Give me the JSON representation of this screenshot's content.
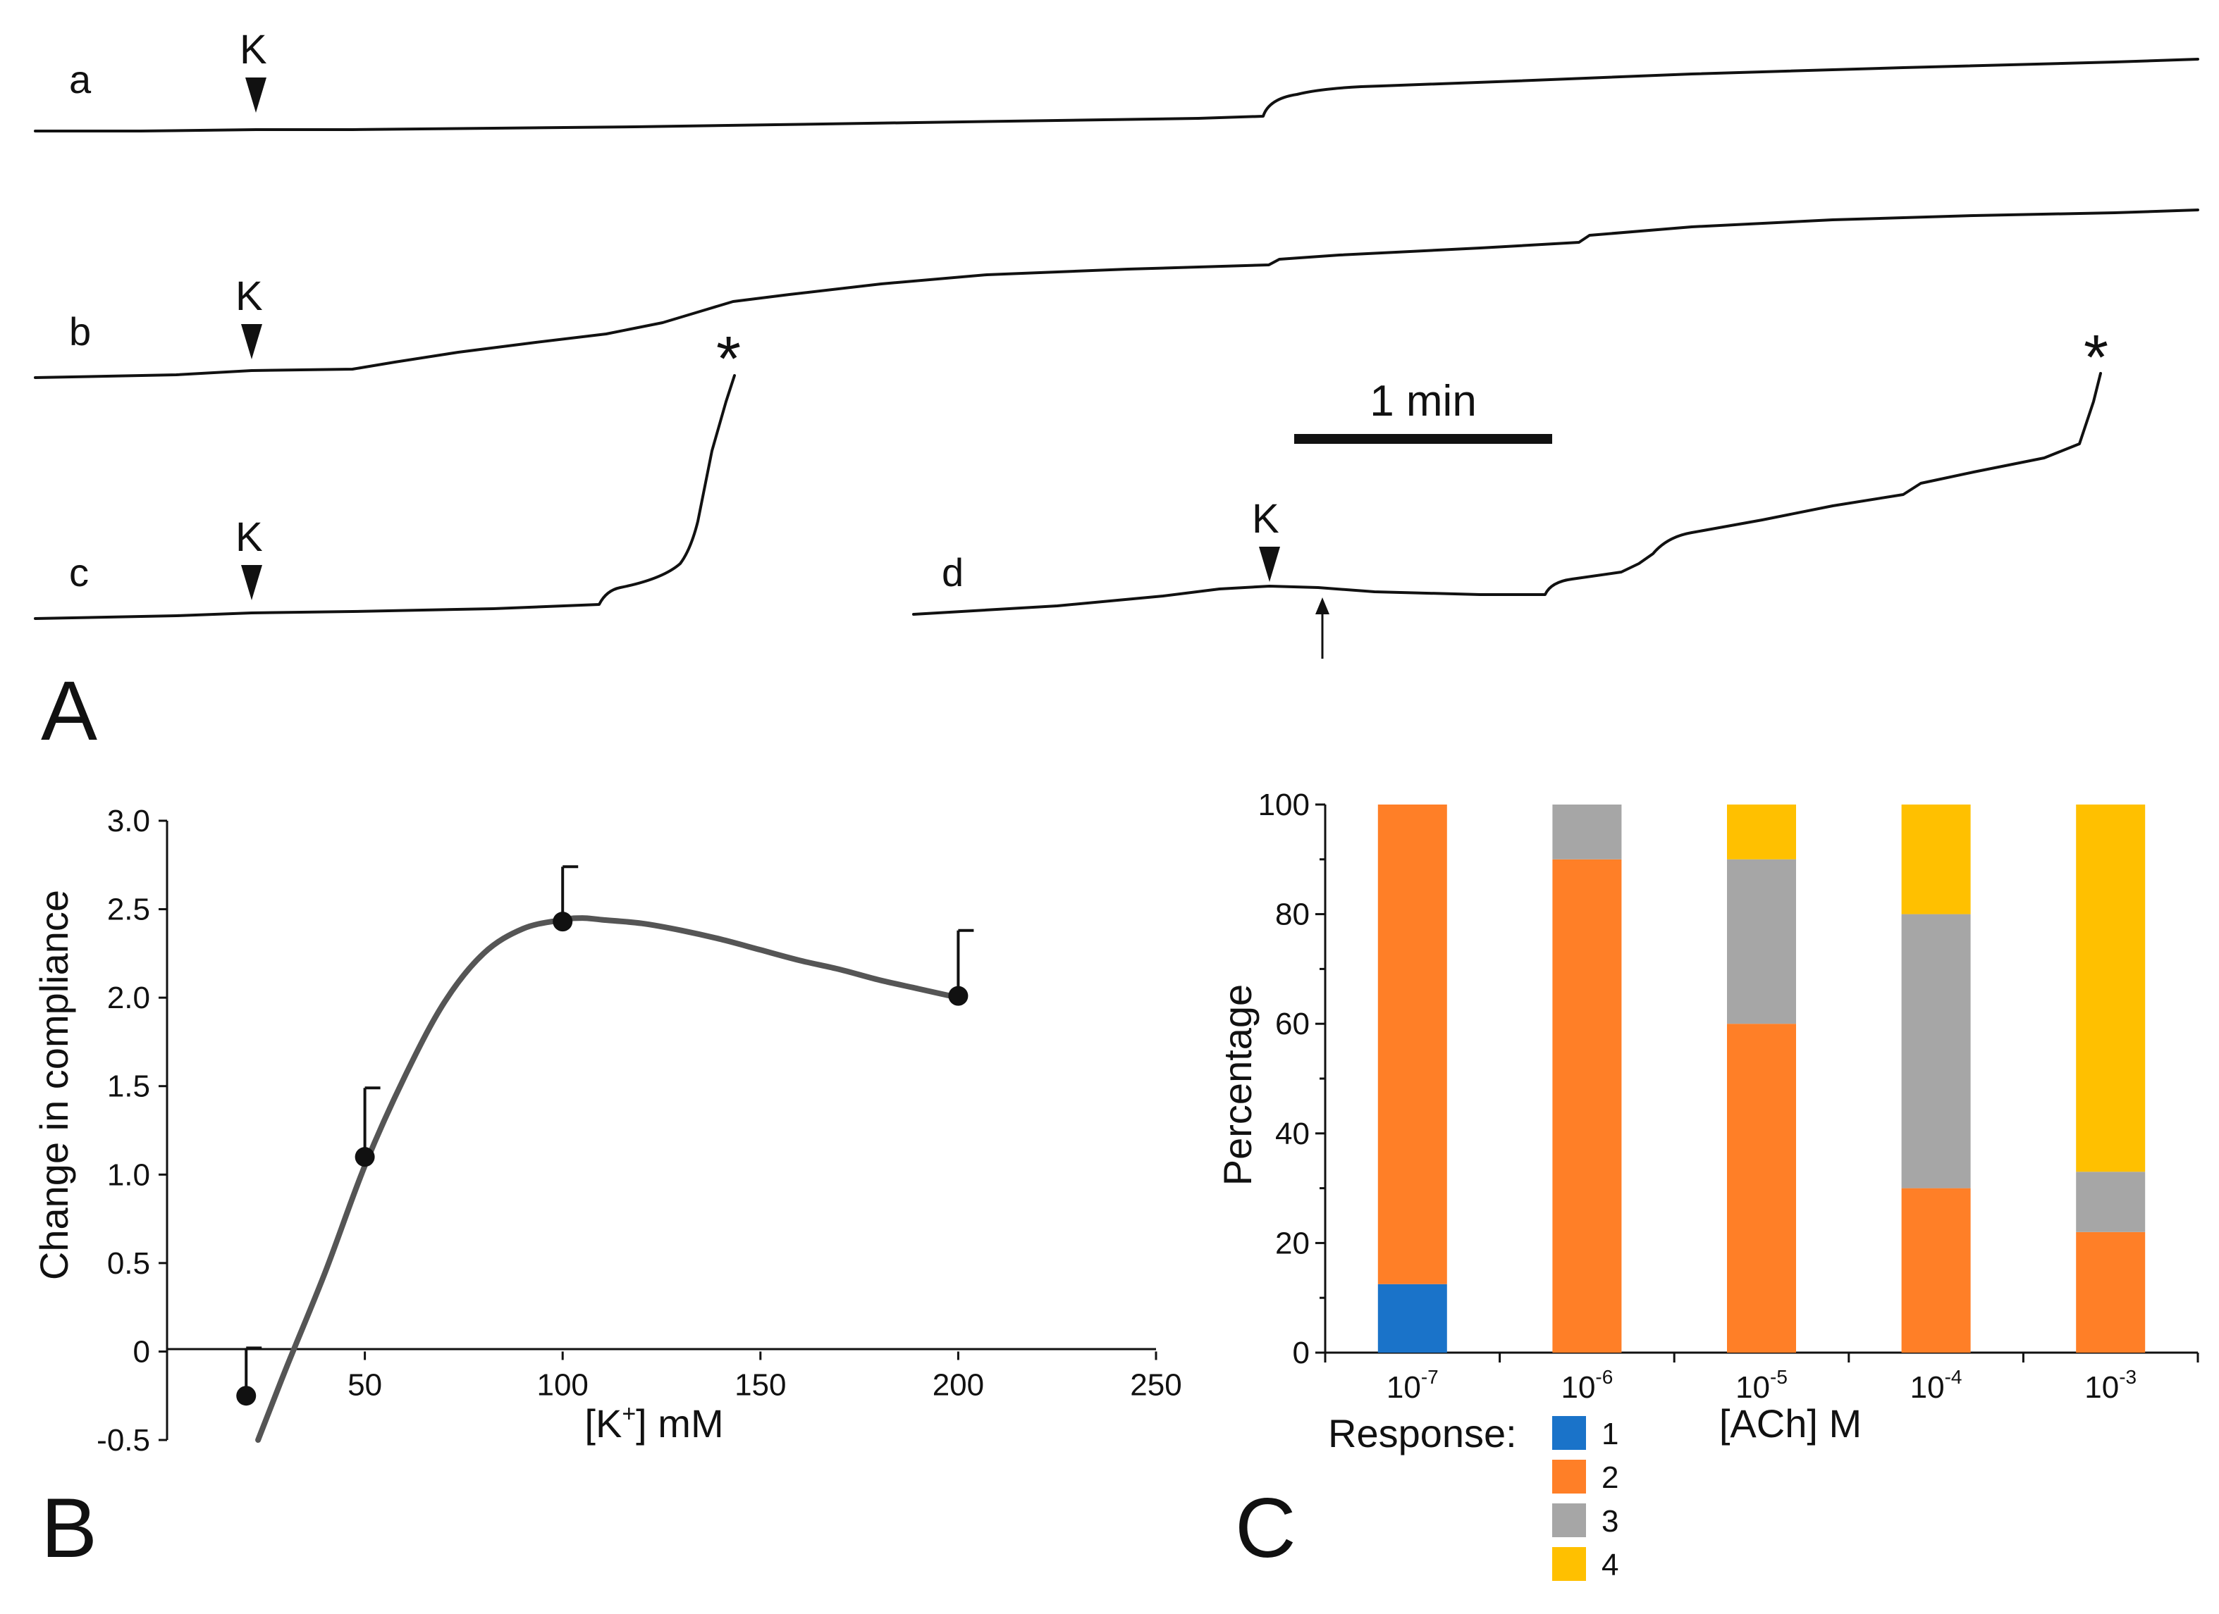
{
  "panel_labels": {
    "A": "A",
    "B": "B",
    "C": "C"
  },
  "panel_a": {
    "traces": [
      {
        "id": "a",
        "label": "a",
        "marker": "K"
      },
      {
        "id": "b",
        "label": "b",
        "marker": "K"
      },
      {
        "id": "c",
        "label": "c",
        "marker": "K"
      },
      {
        "id": "d",
        "label": "d",
        "marker": "K"
      }
    ],
    "scale_bar_label": "1 min",
    "end_marker": "*"
  },
  "chart_data": [
    {
      "type": "line",
      "panel": "B",
      "xlabel_main": "[K",
      "xlabel_sup": "+",
      "xlabel_tail": "] mM",
      "ylabel": "Change in compliance",
      "xlim": [
        0,
        250
      ],
      "ylim": [
        -0.5,
        3.0
      ],
      "x_ticks": [
        50,
        100,
        150,
        200,
        250
      ],
      "x_tick_labels": [
        "50",
        "100",
        "150",
        "200",
        "250"
      ],
      "y_ticks": [
        -0.5,
        0,
        0.5,
        1.0,
        1.5,
        2.0,
        2.5,
        3.0
      ],
      "y_tick_labels": [
        "-0.5",
        "0",
        "0.5",
        "1.0",
        "1.5",
        "2.0",
        "2.5",
        "3.0"
      ],
      "points": [
        {
          "x": 20,
          "y": -0.25,
          "err": 0.27
        },
        {
          "x": 50,
          "y": 1.1,
          "err": 0.39
        },
        {
          "x": 100,
          "y": 2.43,
          "err": 0.31
        },
        {
          "x": 200,
          "y": 2.01,
          "err": 0.37
        }
      ],
      "fit_curve": {
        "x": [
          23,
          30,
          40,
          50,
          60,
          70,
          80,
          90,
          100,
          105,
          110,
          120,
          130,
          140,
          150,
          160,
          170,
          180,
          190,
          200
        ],
        "y": [
          -0.5,
          -0.1,
          0.45,
          1.05,
          1.55,
          1.97,
          2.25,
          2.39,
          2.44,
          2.45,
          2.44,
          2.42,
          2.38,
          2.33,
          2.27,
          2.21,
          2.16,
          2.1,
          2.05,
          2.0
        ]
      }
    },
    {
      "type": "bar",
      "stacked": true,
      "panel": "C",
      "xlabel": "[ACh] M",
      "ylabel": "Percentage",
      "ylim": [
        0,
        100
      ],
      "y_ticks": [
        0,
        20,
        40,
        60,
        80,
        100
      ],
      "y_tick_labels": [
        "0",
        "20",
        "40",
        "60",
        "80",
        "100"
      ],
      "categories": [
        {
          "base": "10",
          "exp": "-7"
        },
        {
          "base": "10",
          "exp": "-6"
        },
        {
          "base": "10",
          "exp": "-5"
        },
        {
          "base": "10",
          "exp": "-4"
        },
        {
          "base": "10",
          "exp": "-3"
        }
      ],
      "series": [
        {
          "name": "1",
          "color": "#1a73c9",
          "values": [
            12.5,
            0,
            0,
            0,
            0
          ]
        },
        {
          "name": "2",
          "color": "#ff7f27",
          "values": [
            87.5,
            90,
            60,
            30,
            22
          ]
        },
        {
          "name": "3",
          "color": "#a6a6a6",
          "values": [
            0,
            10,
            30,
            50,
            11
          ]
        },
        {
          "name": "4",
          "color": "#ffc000",
          "values": [
            0,
            0,
            10,
            20,
            67
          ]
        }
      ],
      "legend_title": "Response:"
    }
  ]
}
